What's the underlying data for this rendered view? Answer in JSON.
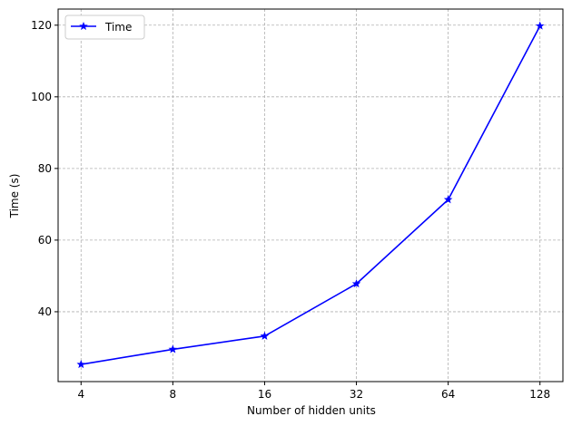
{
  "chart_data": {
    "type": "line",
    "title": "",
    "xlabel": "Number of hidden units",
    "ylabel": "Time (s)",
    "x_scale": "log2",
    "categories": [
      "4",
      "8",
      "16",
      "32",
      "64",
      "128"
    ],
    "x": [
      4,
      8,
      16,
      32,
      64,
      128
    ],
    "ylim": [
      20.5,
      124.5
    ],
    "y_ticks": [
      40,
      60,
      80,
      100,
      120
    ],
    "y_tick_labels": [
      "40",
      "60",
      "80",
      "100",
      "120"
    ],
    "grid": true,
    "legend_position": "top-left",
    "series": [
      {
        "name": "Time",
        "color": "#0000ff",
        "marker": "star",
        "values": [
          25.3,
          29.5,
          33.2,
          47.8,
          71.3,
          119.8
        ]
      }
    ]
  }
}
